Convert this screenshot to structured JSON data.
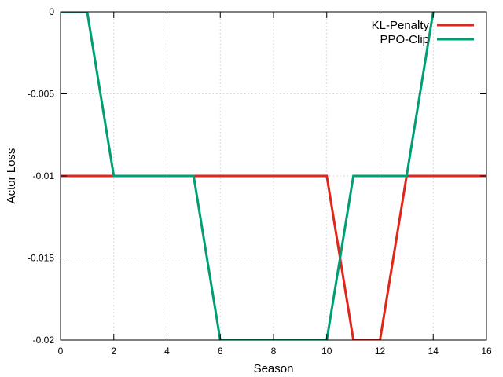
{
  "chart_data": {
    "type": "line",
    "xlabel": "Season",
    "ylabel": "Actor Loss",
    "xlim": [
      0,
      16
    ],
    "ylim": [
      -0.02,
      0
    ],
    "x_ticks": [
      0,
      2,
      4,
      6,
      8,
      10,
      12,
      14,
      16
    ],
    "y_ticks": [
      0,
      -0.005,
      -0.01,
      -0.015,
      -0.02
    ],
    "x_tick_labels": [
      "0",
      "2",
      "4",
      "6",
      "8",
      "10",
      "12",
      "14",
      "16"
    ],
    "y_tick_labels": [
      "0",
      "-0.005",
      "-0.01",
      "-0.015",
      "-0.02"
    ],
    "grid": true,
    "legend_position": "top-right",
    "series": [
      {
        "name": "KL-Penalty",
        "color": "#e0261b",
        "x": [
          0,
          10,
          11,
          12,
          13,
          16
        ],
        "y": [
          -0.01,
          -0.01,
          -0.02,
          -0.02,
          -0.01,
          -0.01
        ]
      },
      {
        "name": "PPO-Clip",
        "color": "#009e73",
        "x": [
          0,
          1,
          2,
          5,
          6,
          10,
          11,
          13,
          14
        ],
        "y": [
          0,
          0,
          -0.01,
          -0.01,
          -0.02,
          -0.02,
          -0.01,
          -0.01,
          0
        ]
      }
    ]
  }
}
